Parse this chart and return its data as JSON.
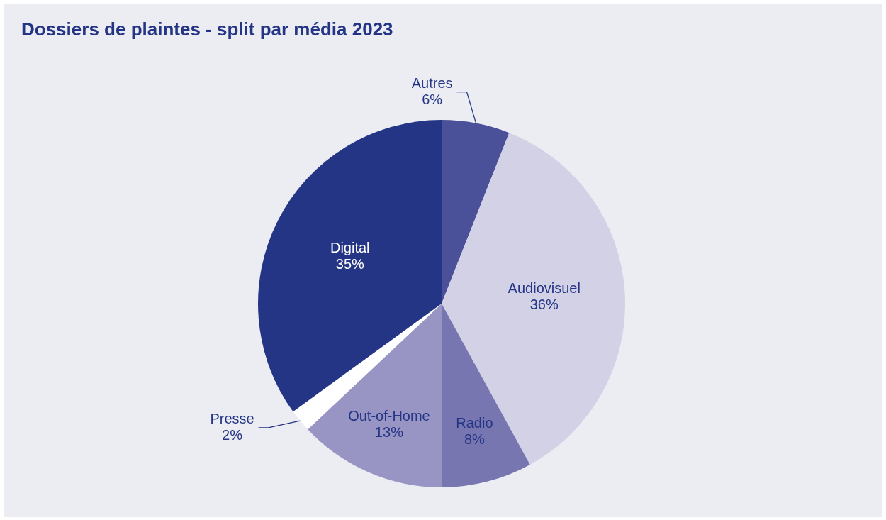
{
  "chart_data": {
    "type": "pie",
    "title": "Dossiers de plaintes - split par média 2023",
    "categories": [
      "Autres",
      "Audiovisuel",
      "Radio",
      "Out-of-Home",
      "Presse",
      "Digital"
    ],
    "values": [
      6,
      36,
      8,
      13,
      2,
      35
    ],
    "value_labels": [
      "6%",
      "36%",
      "8%",
      "13%",
      "2%",
      "35%"
    ],
    "colors": [
      "#4a5198",
      "#d3d1e6",
      "#7876b0",
      "#9895c5",
      "#ffffff",
      "#253585"
    ]
  }
}
